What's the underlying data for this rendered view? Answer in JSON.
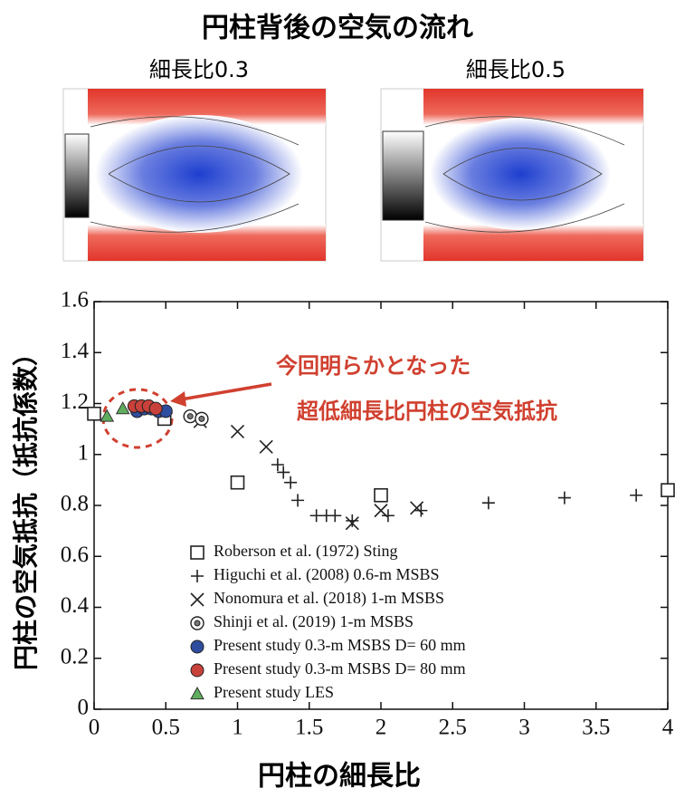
{
  "figure": {
    "title": "円柱背後の空気の流れ",
    "panels": [
      "細長比0.3",
      "細長比0.5"
    ]
  },
  "chart_data": {
    "type": "scatter",
    "x_label": "円柱の細長比",
    "y_label": "円柱の空気抵抗（抵抗係数）",
    "annotations": [
      "今回明らかとなった",
      "超低細長比円柱の空気抵抗"
    ],
    "xlim": [
      0,
      4
    ],
    "xticks": [
      0,
      0.5,
      1,
      1.5,
      2,
      2.5,
      3,
      3.5,
      4
    ],
    "ylim": [
      0,
      1.6
    ],
    "yticks": [
      0,
      0.2,
      0.4,
      0.6,
      0.8,
      1,
      1.2,
      1.4,
      1.6
    ],
    "series": [
      {
        "name": "Roberson et al. (1972) Sting",
        "marker": "square",
        "color": "#222222",
        "x": [
          0,
          0.49,
          1.0,
          2.0,
          4.0
        ],
        "values": [
          1.16,
          1.14,
          0.89,
          0.84,
          0.86
        ]
      },
      {
        "name": "Higuchi et al. (2008) 0.6-m MSBS",
        "marker": "plus",
        "color": "#222222",
        "x": [
          1.28,
          1.32,
          1.37,
          1.42,
          1.55,
          1.62,
          1.68,
          1.8,
          2.05,
          2.28,
          2.75,
          3.28,
          3.78
        ],
        "values": [
          0.96,
          0.93,
          0.89,
          0.82,
          0.76,
          0.76,
          0.76,
          0.74,
          0.76,
          0.78,
          0.81,
          0.83,
          0.84
        ]
      },
      {
        "name": "Nonomura et al. (2018) 1-m MSBS",
        "marker": "cross",
        "color": "#222222",
        "x": [
          0.74,
          1.0,
          1.2,
          1.8,
          2.0,
          2.25
        ],
        "values": [
          1.13,
          1.09,
          1.03,
          0.73,
          0.78,
          0.79
        ]
      },
      {
        "name": "Shinji et al. (2019) 1-m MSBS",
        "marker": "ring",
        "color": "#222222",
        "x": [
          0.67,
          0.75
        ],
        "values": [
          1.15,
          1.14
        ]
      },
      {
        "name": "Present study 0.3-m MSBS D= 60 mm",
        "marker": "circle",
        "color": "#2f4d9e",
        "x": [
          0.3,
          0.35,
          0.4,
          0.45,
          0.5
        ],
        "values": [
          1.17,
          1.18,
          1.18,
          1.17,
          1.17
        ]
      },
      {
        "name": "Present study 0.3-m MSBS D= 80 mm",
        "marker": "circle",
        "color": "#c8413a",
        "x": [
          0.28,
          0.33,
          0.38,
          0.43
        ],
        "values": [
          1.19,
          1.19,
          1.19,
          1.18
        ]
      },
      {
        "name": "Present study LES",
        "marker": "triangle",
        "color": "#5fae5f",
        "x": [
          0.09,
          0.2
        ],
        "values": [
          1.15,
          1.18
        ]
      }
    ]
  }
}
